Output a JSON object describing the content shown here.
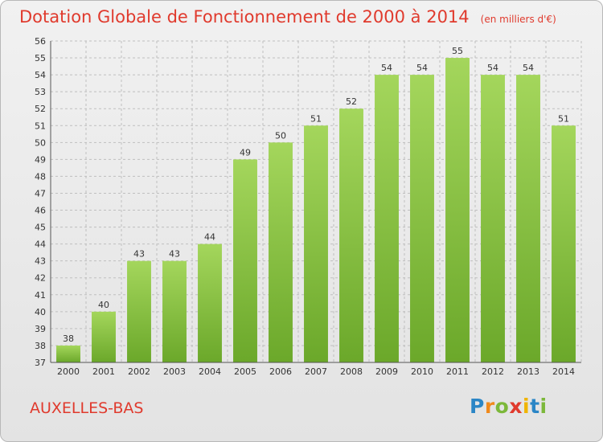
{
  "header": {
    "title": "Dotation Globale de Fonctionnement de 2000 à 2014",
    "unit": "(en milliers d'€)"
  },
  "footer": {
    "commune": "AUXELLES-BAS",
    "logo_letters": [
      "P",
      "r",
      "o",
      "x",
      "i",
      "t",
      "i"
    ],
    "logo_colors": [
      "#2b86c6",
      "#f08a1c",
      "#7cb83a",
      "#e03a2d",
      "#f0b400",
      "#2b86c6",
      "#7cb83a"
    ]
  },
  "colors": {
    "title": "#e03a2d",
    "bar_light": "#a4d65c",
    "bar_dark": "#6ba82a",
    "grid": "#bfbfbf"
  },
  "chart_data": {
    "type": "bar",
    "title": "Dotation Globale de Fonctionnement de 2000 à 2014",
    "subtitle": "(en milliers d'€)",
    "categories": [
      "2000",
      "2001",
      "2002",
      "2003",
      "2004",
      "2005",
      "2006",
      "2007",
      "2008",
      "2009",
      "2010",
      "2011",
      "2012",
      "2013",
      "2014"
    ],
    "values": [
      38,
      40,
      43,
      43,
      44,
      49,
      50,
      51,
      52,
      54,
      54,
      55,
      54,
      54,
      51
    ],
    "ylim": [
      37,
      56
    ],
    "yticks": [
      37,
      38,
      39,
      40,
      41,
      42,
      43,
      44,
      45,
      46,
      47,
      48,
      49,
      50,
      51,
      52,
      53,
      54,
      55,
      56
    ],
    "grid": true,
    "xlabel": "",
    "ylabel": ""
  }
}
